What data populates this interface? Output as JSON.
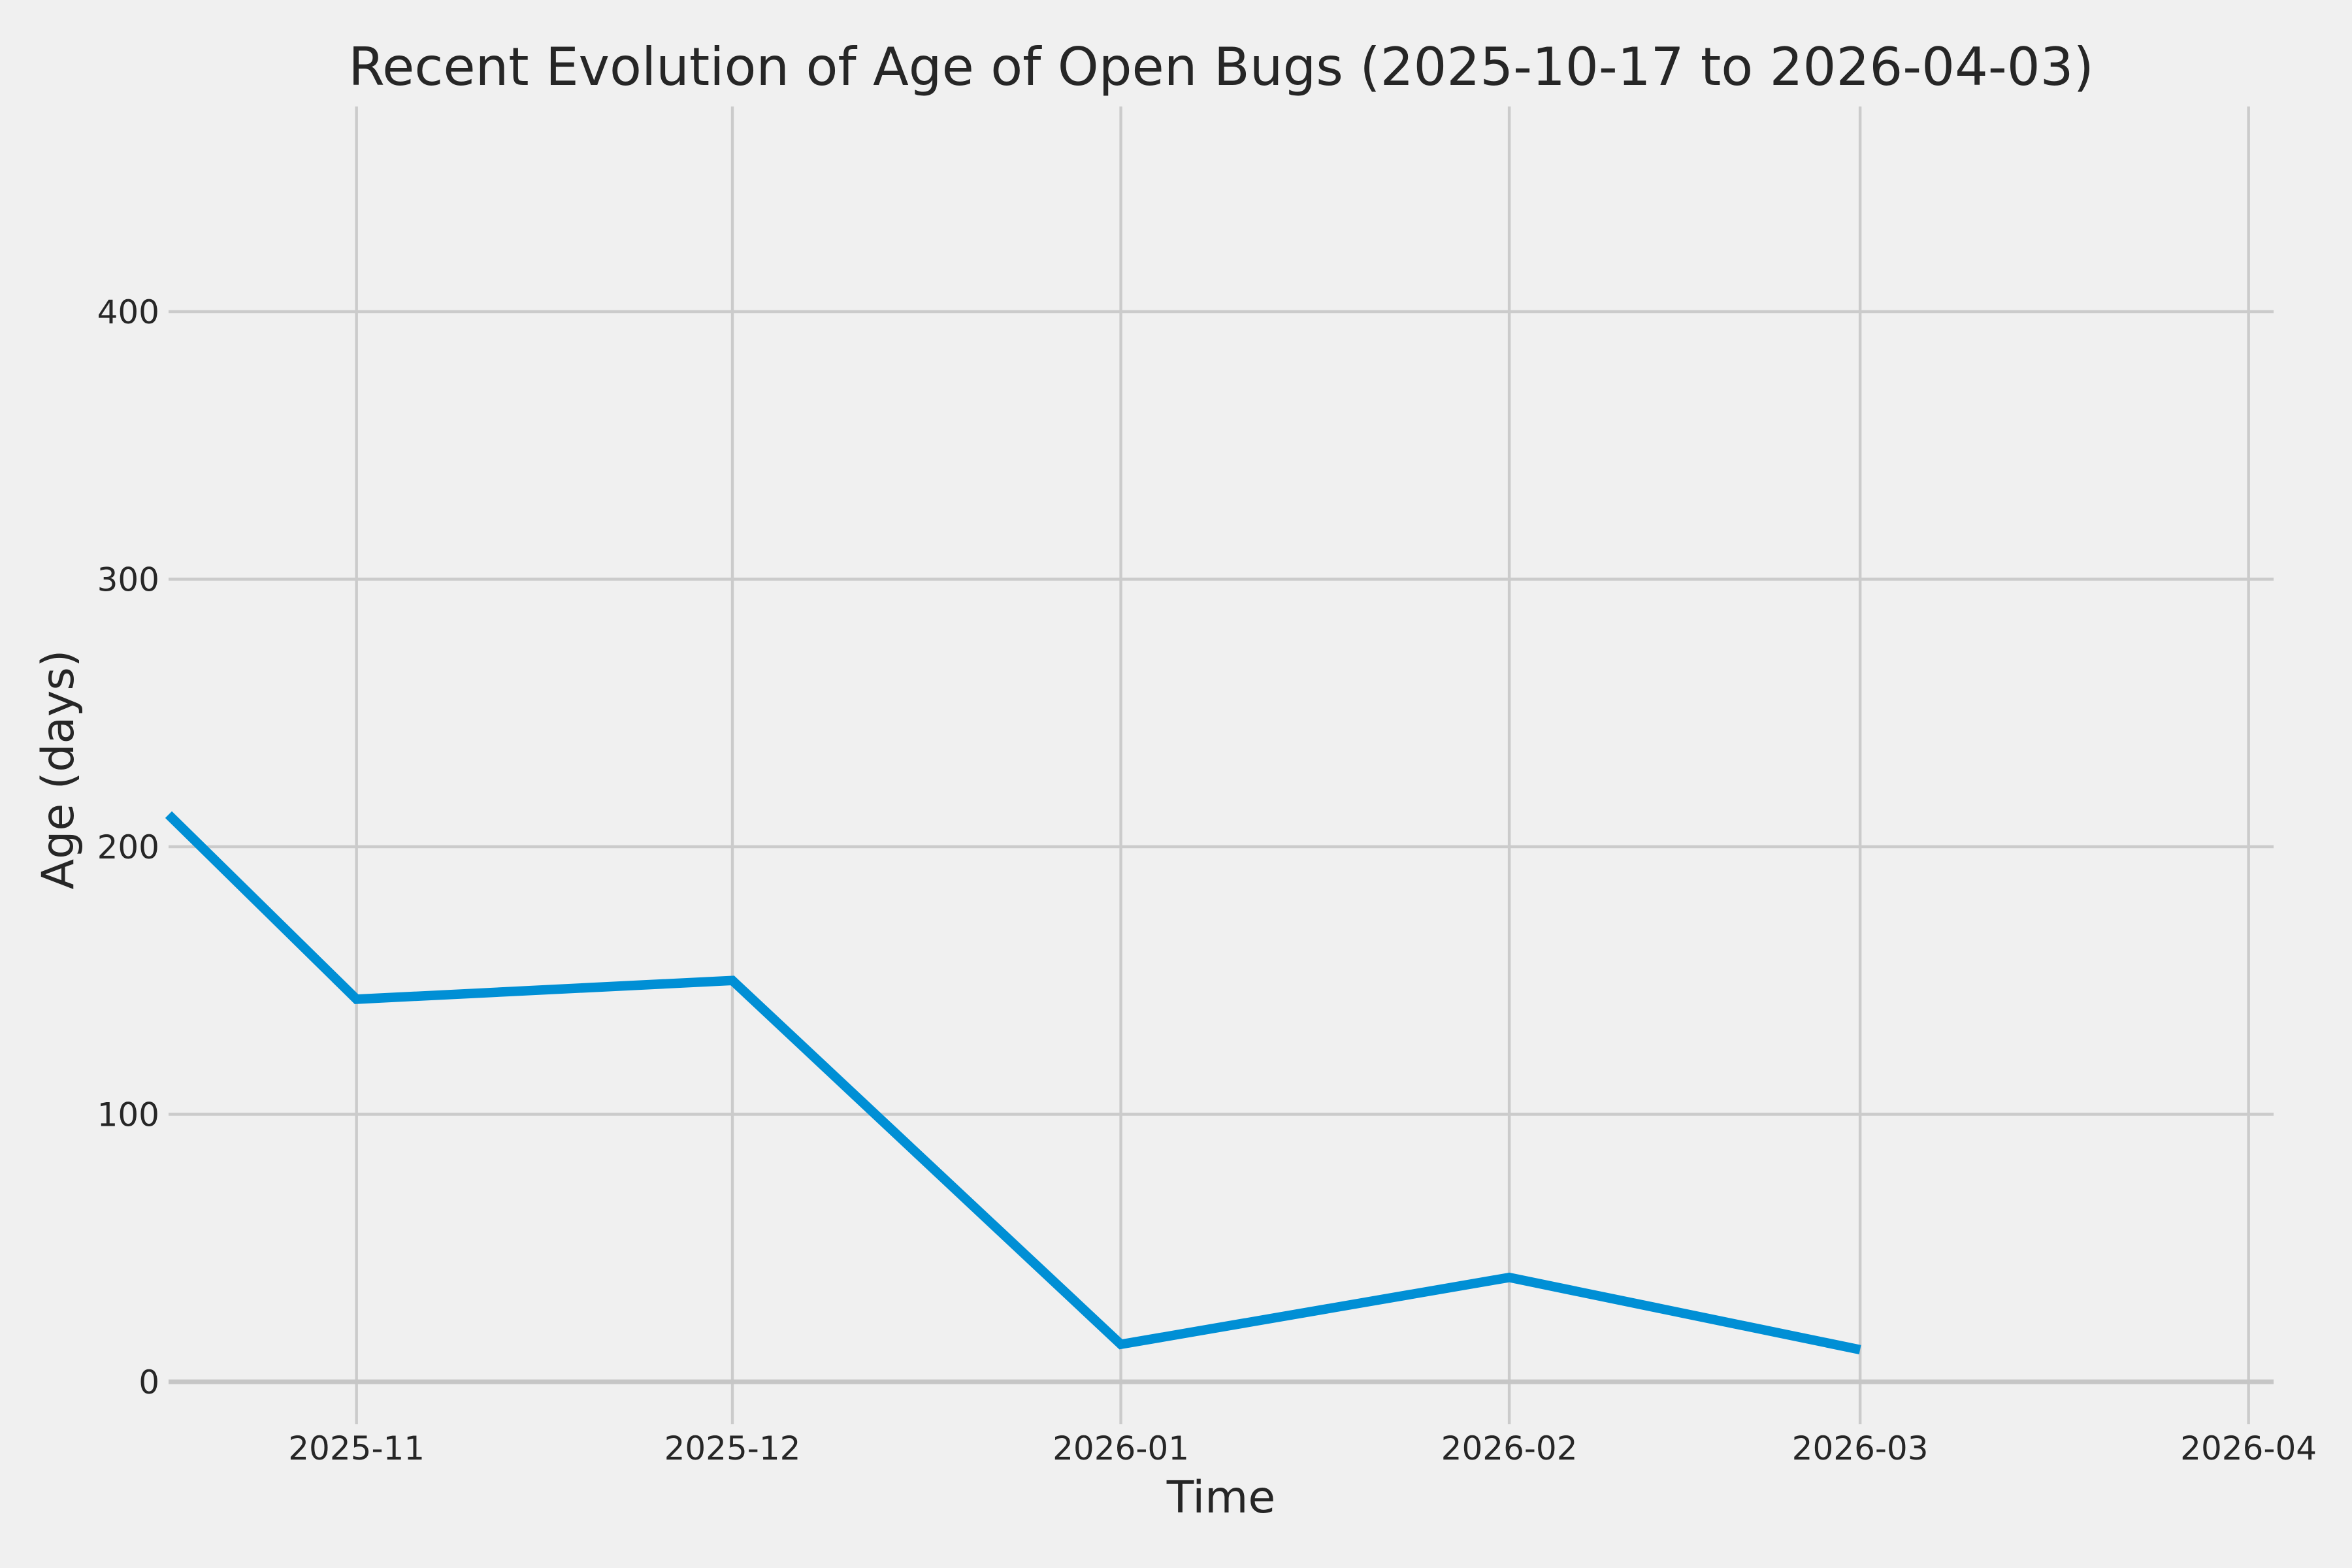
{
  "figure": {
    "background_color": "#f0f0f0"
  },
  "chart_data": {
    "type": "line",
    "title": "Recent Evolution of Age of Open Bugs (2025-10-17 to 2026-04-03)",
    "xlabel": "Time",
    "ylabel": "Age (days)",
    "x_start_date": "2025-10-17",
    "x_end_date": "2026-04-03",
    "x": [
      "2025-10-17",
      "2025-11-01",
      "2025-12-01",
      "2026-01-01",
      "2026-02-01",
      "2026-03-01"
    ],
    "y": [
      212,
      143,
      150,
      14,
      39,
      12
    ],
    "x_tick_dates": [
      "2025-11-01",
      "2025-12-01",
      "2026-01-01",
      "2026-02-01",
      "2026-03-01",
      "2026-04-01"
    ],
    "x_tick_labels": [
      "2025-11",
      "2025-12",
      "2026-01",
      "2026-02",
      "2026-03",
      "2026-04"
    ],
    "y_ticks": [
      0,
      100,
      200,
      300,
      400
    ],
    "ylim": [
      -16,
      477
    ],
    "grid": true,
    "legend_position": "none",
    "line_color": "#008fd5",
    "grid_color": "#cbcbcb",
    "zero_line_color": "#c6c6c6",
    "text_color": "#262626"
  }
}
